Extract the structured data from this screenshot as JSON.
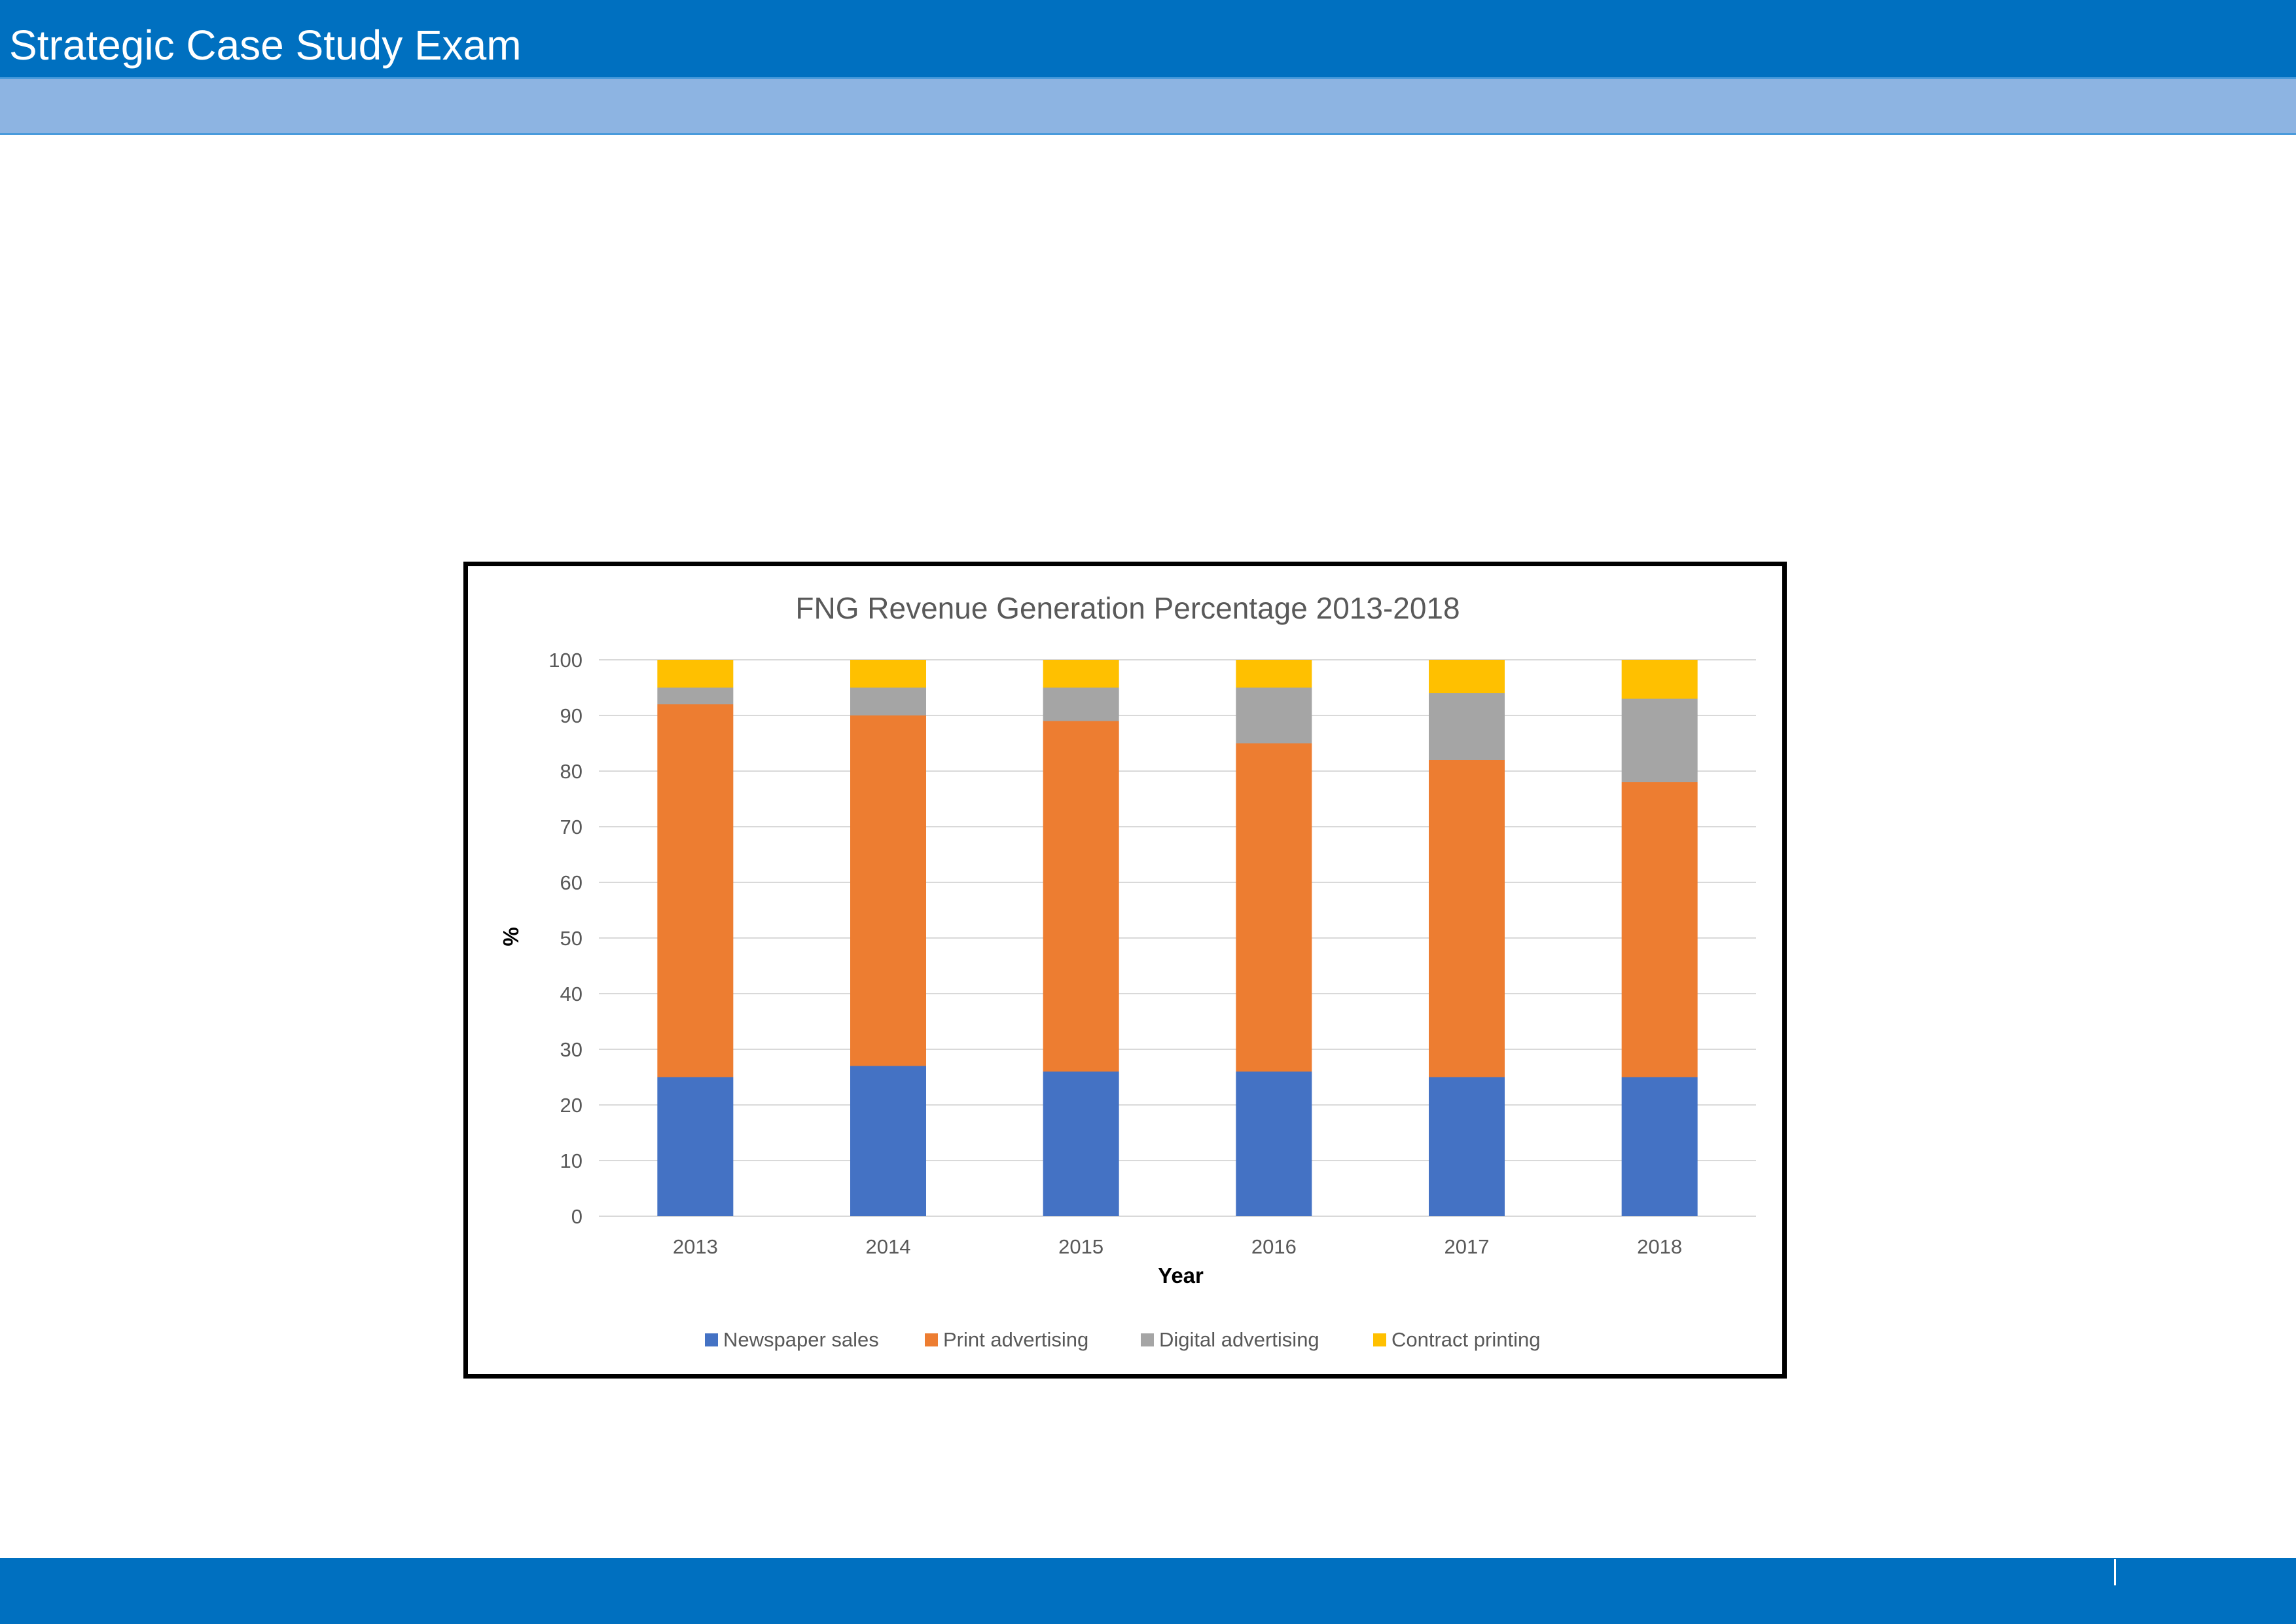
{
  "page": {
    "title": "Strategic Case Study Exam"
  },
  "colors": {
    "header": "#0070C0",
    "subheader": "#8DB4E2",
    "footer": "#0070C0"
  },
  "chart_data": {
    "type": "bar",
    "stacked": true,
    "title": "FNG Revenue Generation Percentage 2013-2018",
    "xlabel": "Year",
    "ylabel": "%",
    "categories": [
      "2013",
      "2014",
      "2015",
      "2016",
      "2017",
      "2018"
    ],
    "ylim": [
      0,
      100
    ],
    "yticks": [
      0,
      10,
      20,
      30,
      40,
      50,
      60,
      70,
      80,
      90,
      100
    ],
    "grid": true,
    "legend_position": "bottom",
    "series": [
      {
        "name": "Newspaper sales",
        "color": "#4472C4",
        "values": [
          25,
          27,
          26,
          26,
          25,
          25
        ]
      },
      {
        "name": "Print advertising",
        "color": "#ED7D31",
        "values": [
          67,
          63,
          63,
          59,
          57,
          53
        ]
      },
      {
        "name": "Digital advertising",
        "color": "#A5A5A5",
        "values": [
          3,
          5,
          6,
          10,
          12,
          15
        ]
      },
      {
        "name": "Contract printing",
        "color": "#FFC000",
        "values": [
          5,
          5,
          5,
          5,
          6,
          7
        ]
      }
    ]
  }
}
